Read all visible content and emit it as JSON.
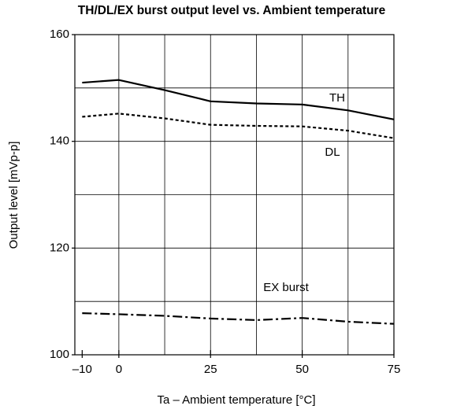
{
  "chart_data": {
    "type": "line",
    "title": "TH/DL/EX burst output level vs. Ambient temperature",
    "xlabel": "Ta – Ambient temperature [°C]",
    "ylabel": "Output level [mVp-p]",
    "x": [
      -10,
      0,
      12.5,
      25,
      37.5,
      50,
      62.5,
      75
    ],
    "series": [
      {
        "name": "TH",
        "color": "#000000",
        "style": "solid",
        "values": [
          151,
          151.5,
          149.6,
          147.5,
          147.1,
          146.9,
          145.8,
          144.1
        ]
      },
      {
        "name": "DL",
        "color": "#000000",
        "style": "dotted",
        "values": [
          144.6,
          145.2,
          144.3,
          143.1,
          142.9,
          142.8,
          142.0,
          140.6
        ]
      },
      {
        "name": "EX burst",
        "color": "#000000",
        "style": "dashdot",
        "values": [
          107.8,
          107.6,
          107.3,
          106.8,
          106.5,
          106.9,
          106.2,
          105.8
        ]
      }
    ],
    "xlim": [
      -12,
      75
    ],
    "xticks": [
      {
        "value": -10,
        "label": "–10"
      },
      0,
      25,
      50,
      75
    ],
    "xgrid": [
      0,
      12.5,
      25,
      37.5,
      50,
      62.5
    ],
    "ylim": [
      100,
      160
    ],
    "yticks": [
      100,
      120,
      140,
      160
    ],
    "ygrid": [
      110,
      120,
      130,
      140,
      150
    ],
    "grid": true
  }
}
